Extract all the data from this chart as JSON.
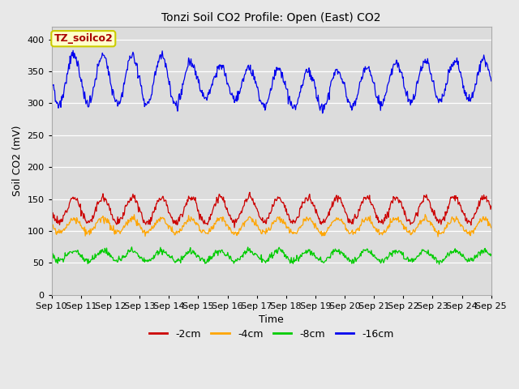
{
  "title": "Tonzi Soil CO2 Profile: Open (East) CO2",
  "xlabel": "Time",
  "ylabel": "Soil CO2 (mV)",
  "watermark": "TZ_soilco2",
  "ylim": [
    0,
    420
  ],
  "yticks": [
    0,
    50,
    100,
    150,
    200,
    250,
    300,
    350,
    400
  ],
  "xtick_labels": [
    "Sep 10",
    "Sep 11",
    "Sep 12",
    "Sep 13",
    "Sep 14",
    "Sep 15",
    "Sep 16",
    "Sep 17",
    "Sep 18",
    "Sep 19",
    "Sep 20",
    "Sep 21",
    "Sep 22",
    "Sep 23",
    "Sep 24",
    "Sep 25"
  ],
  "n_days": 15,
  "points_per_day": 48,
  "series": {
    "-2cm": {
      "color": "#cc0000",
      "base": 133,
      "amp": 20,
      "noise": 3
    },
    "-4cm": {
      "color": "#ffa500",
      "base": 108,
      "amp": 11,
      "noise": 2.5
    },
    "-8cm": {
      "color": "#00cc00",
      "base": 61,
      "amp": 8,
      "noise": 2.5
    },
    "-16cm": {
      "color": "#0000ee",
      "base": 337,
      "amp": 38,
      "noise": 4
    }
  },
  "bg_color": "#e8e8e8",
  "plot_bg": "#dcdcdc",
  "legend_order": [
    "-2cm",
    "-4cm",
    "-8cm",
    "-16cm"
  ],
  "figsize": [
    6.4,
    4.8
  ],
  "dpi": 100
}
